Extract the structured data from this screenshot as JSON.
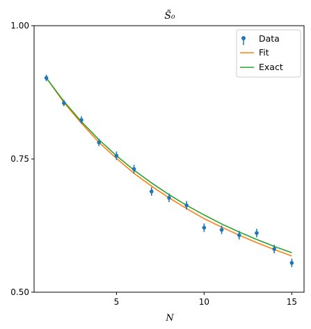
{
  "chart_data": {
    "type": "scatter",
    "title": "S̃₀",
    "xlabel": "N",
    "ylabel": "",
    "xlim": [
      0.3,
      15.7
    ],
    "ylim": [
      0.5,
      1.0
    ],
    "xticks": [
      5,
      10,
      15
    ],
    "xtick_labels": [
      "5",
      "10",
      "15"
    ],
    "yticks": [
      0.5,
      0.75,
      1.0
    ],
    "ytick_labels": [
      "0.50",
      "0.75",
      "1.00"
    ],
    "grid": false,
    "legend_position": "top-right",
    "series": [
      {
        "name": "Data",
        "kind": "errorbar",
        "color": "#1f77b4",
        "x": [
          1,
          2,
          3,
          4,
          5,
          6,
          7,
          8,
          9,
          10,
          11,
          12,
          13,
          14,
          15
        ],
        "y": [
          0.902,
          0.855,
          0.823,
          0.781,
          0.756,
          0.731,
          0.689,
          0.677,
          0.663,
          0.621,
          0.617,
          0.607,
          0.611,
          0.581,
          0.555
        ],
        "yerr": [
          0.006,
          0.006,
          0.007,
          0.007,
          0.008,
          0.008,
          0.008,
          0.008,
          0.008,
          0.008,
          0.008,
          0.008,
          0.008,
          0.008,
          0.008
        ]
      },
      {
        "name": "Fit",
        "kind": "line",
        "color": "#ff7f0e",
        "x": [
          1,
          2,
          3,
          4,
          5,
          6,
          7,
          8,
          9,
          10,
          11,
          12,
          13,
          14,
          15
        ],
        "y": [
          0.902,
          0.856,
          0.817,
          0.781,
          0.751,
          0.723,
          0.699,
          0.677,
          0.657,
          0.638,
          0.622,
          0.607,
          0.593,
          0.58,
          0.568
        ]
      },
      {
        "name": "Exact",
        "kind": "line",
        "color": "#2ca02c",
        "x": [
          1,
          2,
          3,
          4,
          5,
          6,
          7,
          8,
          9,
          10,
          11,
          12,
          13,
          14,
          15
        ],
        "y": [
          0.902,
          0.858,
          0.82,
          0.786,
          0.756,
          0.729,
          0.705,
          0.683,
          0.663,
          0.645,
          0.628,
          0.613,
          0.599,
          0.586,
          0.574
        ]
      }
    ]
  }
}
